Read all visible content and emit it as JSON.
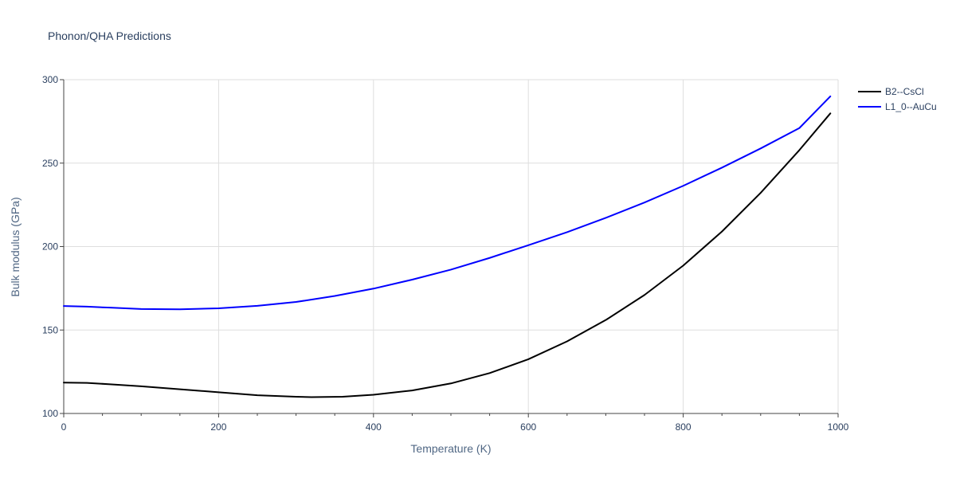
{
  "chart_data": {
    "type": "line",
    "title": "Phonon/QHA Predictions",
    "xlabel": "Temperature (K)",
    "ylabel": "Bulk modulus (GPa)",
    "xlim": [
      0,
      1000
    ],
    "ylim": [
      100,
      300
    ],
    "x_ticks": [
      0,
      200,
      400,
      600,
      800,
      1000
    ],
    "y_ticks": [
      100,
      150,
      200,
      250,
      300
    ],
    "x_minor_ticks": [
      50,
      100,
      150,
      250,
      300,
      350,
      450,
      500,
      550,
      650,
      700,
      750,
      850,
      900,
      950
    ],
    "grid": true,
    "legend_position": "top-right, outside plot",
    "series": [
      {
        "name": "B2--CsCl",
        "color": "#000000",
        "x": [
          0,
          30,
          60,
          100,
          150,
          200,
          250,
          300,
          320,
          360,
          400,
          450,
          500,
          550,
          600,
          650,
          700,
          750,
          800,
          850,
          900,
          950,
          990
        ],
        "y": [
          118.5,
          118.3,
          117.5,
          116.3,
          114.5,
          112.7,
          110.9,
          110.0,
          109.8,
          110.0,
          111.2,
          113.8,
          118.0,
          124.2,
          132.5,
          143.2,
          156.0,
          171.0,
          188.6,
          209.0,
          232.2,
          257.8,
          279.8
        ]
      },
      {
        "name": "L1_0--AuCu",
        "color": "#0000ff",
        "x": [
          0,
          30,
          60,
          100,
          150,
          200,
          250,
          300,
          350,
          400,
          450,
          500,
          550,
          600,
          650,
          700,
          750,
          800,
          850,
          900,
          950,
          990
        ],
        "y": [
          164.4,
          164.0,
          163.4,
          162.6,
          162.4,
          163.0,
          164.5,
          166.8,
          170.4,
          174.8,
          180.2,
          186.2,
          193.2,
          200.8,
          208.6,
          217.2,
          226.4,
          236.4,
          247.3,
          258.8,
          271.0,
          290.0
        ]
      }
    ]
  }
}
